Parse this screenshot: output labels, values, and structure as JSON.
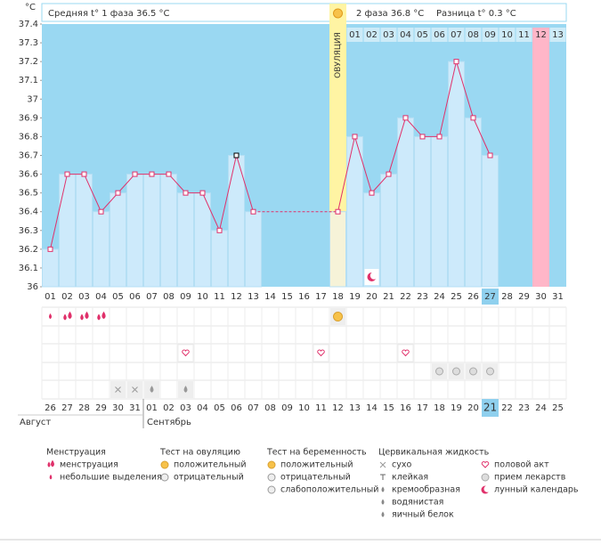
{
  "chart_data": {
    "type": "line",
    "y_axis_label": "°C",
    "header": {
      "phase1": "Средняя t° 1 фаза 36.5 °C",
      "phase2": "2 фаза 36.8 °C",
      "difference": "Разница t° 0.3 °C"
    },
    "ovulation_label": "ОВУЛЯЦИЯ",
    "post_ovulation_days": [
      "01",
      "02",
      "03",
      "04",
      "05",
      "06",
      "07",
      "08",
      "09",
      "10",
      "11",
      "12",
      "13"
    ],
    "categories": [
      "01",
      "02",
      "03",
      "04",
      "05",
      "06",
      "07",
      "08",
      "09",
      "10",
      "11",
      "12",
      "13",
      "14",
      "15",
      "16",
      "17",
      "18",
      "19",
      "20",
      "21",
      "22",
      "23",
      "24",
      "25",
      "26",
      "27",
      "28",
      "29",
      "30",
      "31"
    ],
    "values": [
      36.2,
      36.6,
      36.6,
      36.4,
      36.5,
      36.6,
      36.6,
      36.6,
      36.5,
      36.5,
      36.3,
      36.7,
      36.4,
      null,
      null,
      null,
      null,
      36.4,
      36.8,
      36.5,
      36.6,
      36.9,
      36.8,
      36.8,
      37.2,
      36.9,
      36.7,
      null,
      null,
      null,
      null
    ],
    "color": "#e0306a",
    "bar_color": "#cdeafb",
    "background": "#9ad8f2",
    "ylim": [
      36,
      37.4
    ],
    "yticks": [
      36,
      36.1,
      36.2,
      36.3,
      36.4,
      36.5,
      36.6,
      36.7,
      36.8,
      36.9,
      37,
      37.1,
      37.2,
      37.3,
      37.4
    ],
    "dates": [
      "26",
      "27",
      "28",
      "29",
      "30",
      "31",
      "01",
      "02",
      "03",
      "04",
      "05",
      "06",
      "07",
      "08",
      "09",
      "10",
      "11",
      "12",
      "13",
      "14",
      "15",
      "16",
      "17",
      "18",
      "19",
      "20",
      "21",
      "22",
      "23",
      "24",
      "25"
    ],
    "holidays": [
      "31",
      "01",
      "07",
      "08",
      "14",
      "15",
      "21",
      "22"
    ],
    "holiday_color": "#e0005a",
    "months": [
      "Август",
      "Сентябрь"
    ],
    "legend": [
      {
        "title": "Менструация",
        "items": [
          "менструация",
          "небольшие выделения"
        ]
      },
      {
        "title": "Тест на овуляцию",
        "items": [
          "положительный",
          "отрицательный"
        ]
      },
      {
        "title": "Тест на беременность",
        "items": [
          "положительный",
          "отрицательный",
          "слабоположительный"
        ]
      },
      {
        "title": "Цервикальная жидкость",
        "items": [
          "сухо",
          "клейкая",
          "кремообразная",
          "водянистая",
          "яичный белок"
        ]
      },
      {
        "title": null,
        "items": [
          "половой акт",
          "прием лекарств",
          "лунный календарь"
        ]
      }
    ]
  }
}
